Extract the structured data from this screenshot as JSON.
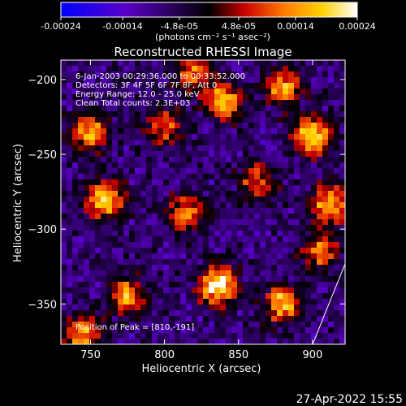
{
  "colorbar": {
    "tick_labels": [
      "-0.00024",
      "-0.00014",
      "-4.8e-05",
      "4.8e-05",
      "0.00014",
      "0.00024"
    ],
    "tick_values": [
      -0.00024,
      -0.00014,
      -4.8e-05,
      4.8e-05,
      0.00014,
      0.00024
    ],
    "range": [
      -0.00024,
      0.00024
    ],
    "units_label": "(photons cm⁻² s⁻¹ asec⁻²)",
    "colors": [
      "#0000ff",
      "#5a00c8",
      "#000000",
      "#c80000",
      "#ff7800",
      "#ffd200",
      "#ffffff"
    ]
  },
  "chart_data": {
    "type": "heatmap",
    "title": "Reconstructed RHESSI Image",
    "xlabel": "Heliocentric X (arcsec)",
    "ylabel": "Heliocentric Y (arcsec)",
    "xlim": [
      730,
      922
    ],
    "ylim": [
      -377,
      -187
    ],
    "x_ticks": [
      750,
      800,
      850,
      900
    ],
    "y_ticks": [
      -200,
      -250,
      -300,
      -350
    ],
    "x_tick_labels": [
      "750",
      "800",
      "850",
      "900"
    ],
    "y_tick_labels": [
      "−200",
      "−250",
      "−300",
      "−350"
    ],
    "annotations": [
      "6-Jan-2003 00:29:36.000 to 00:33:52.000",
      "Detectors: 3F 4F 5F 6F 7F 8F, Att 0",
      "Energy Range: 12.0 - 25.0 keV",
      "Clean     Total counts: 2.3E+03"
    ],
    "peak_label": "Position of Peak = [810,-191]",
    "peak": [
      810,
      -191
    ],
    "hotspots": [
      {
        "x": 836,
        "y": -338,
        "value": 1.0
      },
      {
        "x": 760,
        "y": -280,
        "value": 0.85
      },
      {
        "x": 900,
        "y": -237,
        "value": 0.9
      },
      {
        "x": 880,
        "y": -350,
        "value": 0.8
      },
      {
        "x": 840,
        "y": -215,
        "value": 0.8
      },
      {
        "x": 775,
        "y": -345,
        "value": 0.75
      },
      {
        "x": 880,
        "y": -205,
        "value": 0.75
      },
      {
        "x": 750,
        "y": -235,
        "value": 0.7
      },
      {
        "x": 815,
        "y": -290,
        "value": 0.65
      },
      {
        "x": 912,
        "y": -283,
        "value": 0.8
      },
      {
        "x": 800,
        "y": -232,
        "value": 0.6
      },
      {
        "x": 745,
        "y": -370,
        "value": 0.7
      },
      {
        "x": 862,
        "y": -268,
        "value": 0.55
      },
      {
        "x": 820,
        "y": -195,
        "value": 0.6
      },
      {
        "x": 905,
        "y": -315,
        "value": 0.6
      }
    ]
  },
  "timestamp": "27-Apr-2022 15:55"
}
